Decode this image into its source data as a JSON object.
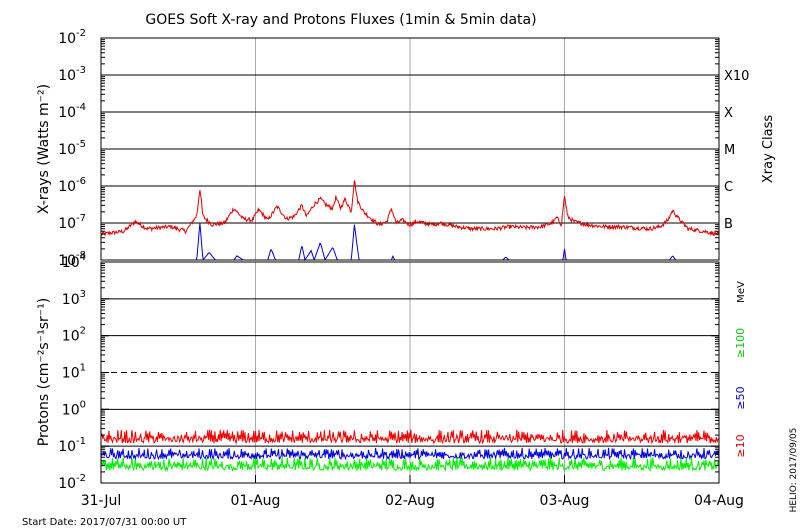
{
  "title": "GOES Soft X-ray and Protons Fluxes   (1min & 5min data)",
  "start_date": "Start Date: 2017/07/31 00:00 UT",
  "credit": "HELIO: 2017/09/05",
  "colors": {
    "xray_long": "#dd0000",
    "xray_short": "#0000cc",
    "proton_10": "#ee0000",
    "proton_50": "#0000dd",
    "proton_100": "#00ee00",
    "day_line": "#aaaaaa"
  },
  "chart_data": [
    {
      "type": "line",
      "name": "xray",
      "ylabel": "X-rays (Watts m⁻²)",
      "yscale": "log",
      "ylim": [
        1e-08,
        0.01
      ],
      "xlim": [
        "2017-07-31",
        "2017-08-04"
      ],
      "ytick_labels": [
        {
          "base": "10",
          "exp": "-2"
        },
        {
          "base": "10",
          "exp": "-3"
        },
        {
          "base": "10",
          "exp": "-4"
        },
        {
          "base": "10",
          "exp": "-5"
        },
        {
          "base": "10",
          "exp": "-6"
        },
        {
          "base": "10",
          "exp": "-7"
        },
        {
          "base": "10",
          "exp": "-8"
        }
      ],
      "right_labels": [
        "X10",
        "X",
        "M",
        "C",
        "B"
      ],
      "right_axis_title": "Xray Class",
      "series": [
        {
          "key": "long",
          "points": [
            [
              0.0,
              5e-08
            ],
            [
              0.15,
              6e-08
            ],
            [
              0.22,
              1.1e-07
            ],
            [
              0.3,
              7e-08
            ],
            [
              0.45,
              8e-08
            ],
            [
              0.55,
              6e-08
            ],
            [
              0.62,
              1.6e-07
            ],
            [
              0.64,
              8.5e-07
            ],
            [
              0.66,
              1.5e-07
            ],
            [
              0.72,
              9e-08
            ],
            [
              0.8,
              1e-07
            ],
            [
              0.86,
              2.5e-07
            ],
            [
              0.92,
              1.3e-07
            ],
            [
              0.98,
              1.2e-07
            ],
            [
              1.02,
              2.3e-07
            ],
            [
              1.08,
              1.2e-07
            ],
            [
              1.14,
              2.8e-07
            ],
            [
              1.2,
              1.3e-07
            ],
            [
              1.25,
              1.5e-07
            ],
            [
              1.3,
              3e-07
            ],
            [
              1.33,
              1.5e-07
            ],
            [
              1.38,
              3.2e-07
            ],
            [
              1.42,
              4.5e-07
            ],
            [
              1.46,
              3e-07
            ],
            [
              1.5,
              2.5e-07
            ],
            [
              1.52,
              5e-07
            ],
            [
              1.55,
              2.5e-07
            ],
            [
              1.58,
              4.5e-07
            ],
            [
              1.62,
              2e-07
            ],
            [
              1.64,
              1.5e-06
            ],
            [
              1.66,
              4e-07
            ],
            [
              1.7,
              2e-07
            ],
            [
              1.76,
              1.2e-07
            ],
            [
              1.8,
              9e-08
            ],
            [
              1.85,
              1.1e-07
            ],
            [
              1.88,
              2.5e-07
            ],
            [
              1.91,
              1e-07
            ],
            [
              1.95,
              1.2e-07
            ],
            [
              2.0,
              9e-08
            ],
            [
              2.05,
              1.1e-07
            ],
            [
              2.14,
              9e-08
            ],
            [
              2.2,
              1e-07
            ],
            [
              2.3,
              8e-08
            ],
            [
              2.4,
              7e-08
            ],
            [
              2.55,
              7e-08
            ],
            [
              2.65,
              8e-08
            ],
            [
              2.75,
              7.5e-08
            ],
            [
              2.85,
              8e-08
            ],
            [
              2.92,
              1e-07
            ],
            [
              2.95,
              1.4e-07
            ],
            [
              2.98,
              9e-08
            ],
            [
              3.0,
              5.5e-07
            ],
            [
              3.02,
              1.5e-07
            ],
            [
              3.06,
              1.1e-07
            ],
            [
              3.15,
              9e-08
            ],
            [
              3.25,
              8e-08
            ],
            [
              3.35,
              8e-08
            ],
            [
              3.45,
              7.5e-08
            ],
            [
              3.55,
              7e-08
            ],
            [
              3.62,
              8e-08
            ],
            [
              3.67,
              1.2e-07
            ],
            [
              3.7,
              2.2e-07
            ],
            [
              3.74,
              1.3e-07
            ],
            [
              3.8,
              7e-08
            ],
            [
              3.9,
              6e-08
            ],
            [
              4.0,
              5e-08
            ]
          ]
        },
        {
          "key": "short",
          "points": [
            [
              0.0,
              1e-08
            ],
            [
              0.62,
              1e-08
            ],
            [
              0.64,
              1e-07
            ],
            [
              0.66,
              1e-08
            ],
            [
              0.7,
              1.6e-08
            ],
            [
              0.74,
              1e-08
            ],
            [
              0.86,
              1e-08
            ],
            [
              0.88,
              1.3e-08
            ],
            [
              0.92,
              1e-08
            ],
            [
              1.08,
              1e-08
            ],
            [
              1.1,
              2e-08
            ],
            [
              1.13,
              1e-08
            ],
            [
              1.28,
              1e-08
            ],
            [
              1.3,
              2.5e-08
            ],
            [
              1.32,
              1e-08
            ],
            [
              1.36,
              1.8e-08
            ],
            [
              1.38,
              1e-08
            ],
            [
              1.42,
              3e-08
            ],
            [
              1.45,
              1e-08
            ],
            [
              1.5,
              2.2e-08
            ],
            [
              1.53,
              1e-08
            ],
            [
              1.62,
              1e-08
            ],
            [
              1.64,
              9e-08
            ],
            [
              1.67,
              1e-08
            ],
            [
              1.88,
              1e-08
            ],
            [
              1.89,
              1.3e-08
            ],
            [
              1.9,
              1e-08
            ],
            [
              2.6,
              1e-08
            ],
            [
              2.62,
              1.2e-08
            ],
            [
              2.64,
              1e-08
            ],
            [
              2.99,
              1e-08
            ],
            [
              3.0,
              2e-08
            ],
            [
              3.01,
              1e-08
            ],
            [
              3.68,
              1e-08
            ],
            [
              3.7,
              1.3e-08
            ],
            [
              3.72,
              1e-08
            ],
            [
              4.0,
              1e-08
            ]
          ]
        }
      ]
    },
    {
      "type": "line",
      "name": "protons",
      "ylabel": "Protons (cm⁻²s⁻¹sr⁻¹)",
      "yscale": "log",
      "ylim": [
        0.01,
        10000
      ],
      "xlim": [
        "2017-07-31",
        "2017-08-04"
      ],
      "ytick_labels": [
        {
          "base": "10",
          "exp": "4"
        },
        {
          "base": "10",
          "exp": "3"
        },
        {
          "base": "10",
          "exp": "2"
        },
        {
          "base": "10",
          "exp": "1"
        },
        {
          "base": "10",
          "exp": "0"
        },
        {
          "base": "10",
          "exp": "-1"
        },
        {
          "base": "10",
          "exp": "-2"
        }
      ],
      "threshold": 10,
      "unit_label": "MeV",
      "series": [
        {
          "key": "p10",
          "label": "≥10",
          "level": [
            0.12,
            0.28
          ]
        },
        {
          "key": "p50",
          "label": "≥50",
          "level": [
            0.045,
            0.09
          ]
        },
        {
          "key": "p100",
          "label": "≥100",
          "level": [
            0.022,
            0.05
          ]
        }
      ],
      "x_labels": [
        "31-Jul",
        "01-Aug",
        "02-Aug",
        "03-Aug",
        "04-Aug"
      ]
    }
  ]
}
